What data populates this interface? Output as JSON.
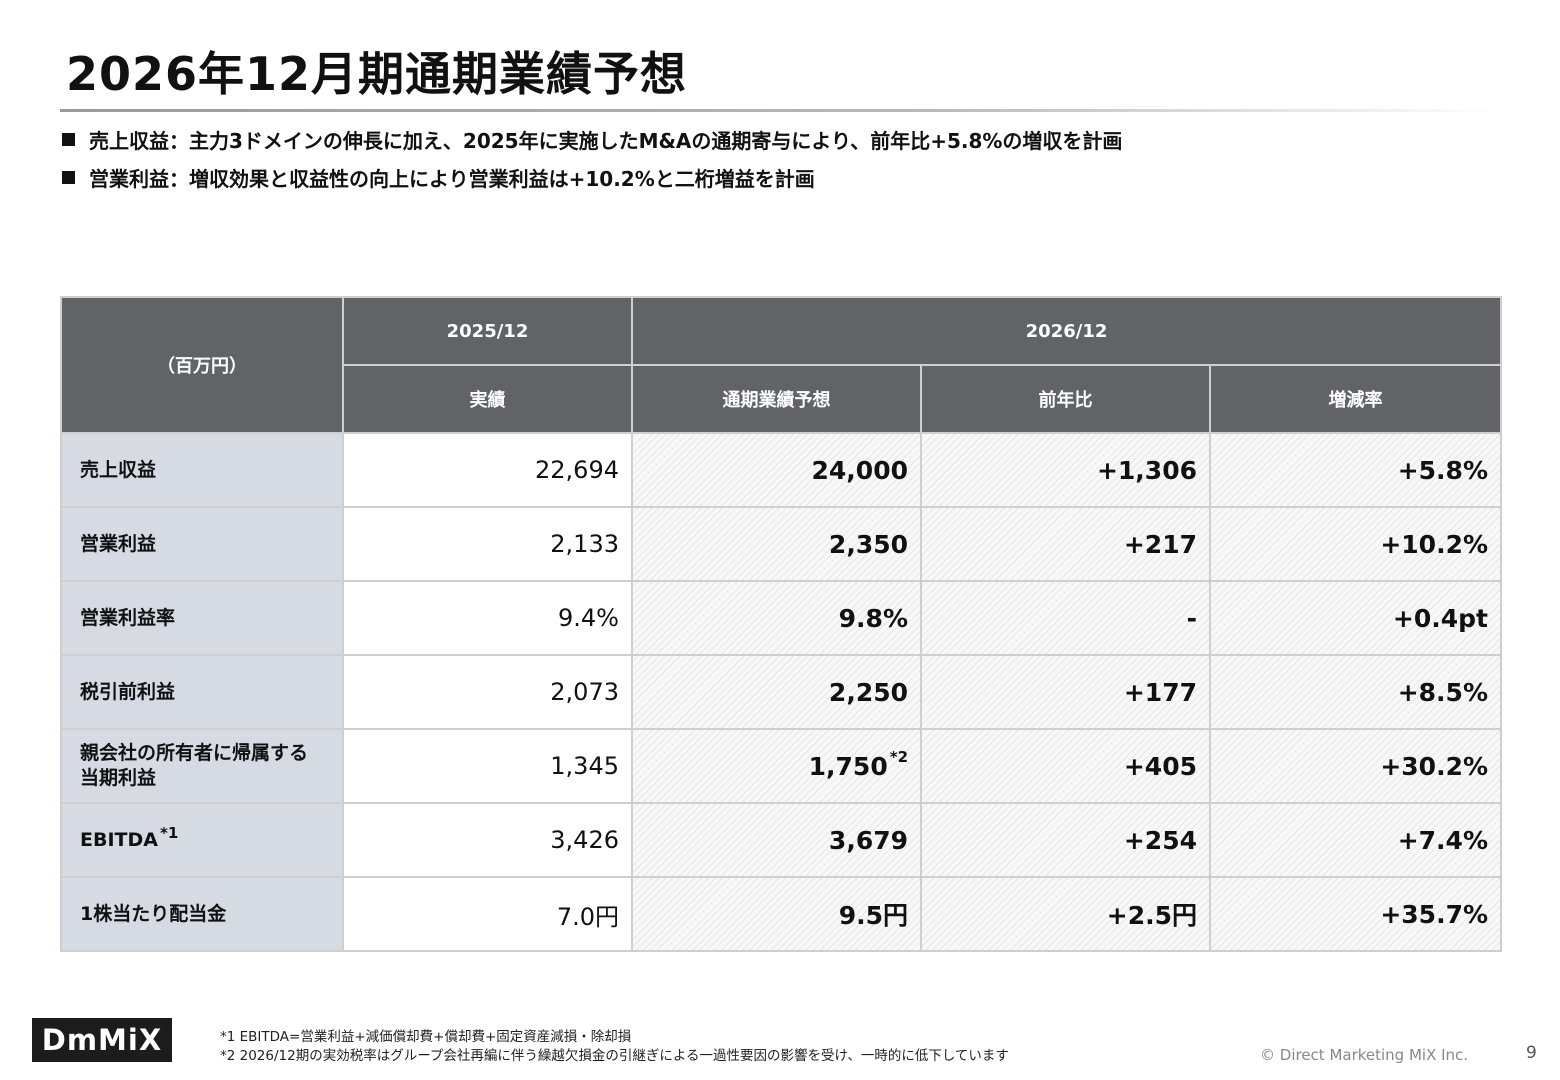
{
  "title": "2026年12月期通期業績予想",
  "bullets": [
    "売上収益：主力3ドメインの伸長に加え、2025年に実施したM&Aの通期寄与により、前年比+5.8%の増収を計画",
    "営業利益：増収効果と収益性の向上により営業利益は+10.2%と二桁増益を計画"
  ],
  "table": {
    "unit_label": "（百万円）",
    "group_2025": "2025/12",
    "group_2026": "2026/12",
    "col_actual": "実績",
    "col_forecast": "通期業績予想",
    "col_yoy": "前年比",
    "col_rate": "増減率",
    "rows": [
      {
        "label": "売上収益",
        "actual": "22,694",
        "forecast": "24,000",
        "yoy": "+1,306",
        "rate": "+5.8%"
      },
      {
        "label": "営業利益",
        "actual": "2,133",
        "forecast": "2,350",
        "yoy": "+217",
        "rate": "+10.2%"
      },
      {
        "label": "営業利益率",
        "actual": "9.4%",
        "forecast": "9.8%",
        "yoy": "-",
        "rate": "+0.4pt"
      },
      {
        "label": "税引前利益",
        "actual": "2,073",
        "forecast": "2,250",
        "yoy": "+177",
        "rate": "+8.5%"
      },
      {
        "label_line1": "親会社の所有者に帰属する",
        "label_line2": "当期利益",
        "actual": "1,345",
        "forecast": "1,750",
        "forecast_note": "*2",
        "yoy": "+405",
        "rate": "+30.2%"
      },
      {
        "label": "EBITDA",
        "label_note": "*1",
        "actual": "3,426",
        "forecast": "3,679",
        "yoy": "+254",
        "rate": "+7.4%"
      },
      {
        "label": "1株当たり配当金",
        "actual": "7.0円",
        "forecast": "9.5円",
        "yoy": "+2.5円",
        "rate": "+35.7%"
      }
    ]
  },
  "footnotes": [
    "*1  EBITDA=営業利益+減価償却費+償却費+固定資産減損・除却損",
    "*2  2026/12期の実効税率はグループ会社再編に伴う繰越欠損金の引継ぎによる一過性要因の影響を受け、一時的に低下しています"
  ],
  "logo_text": "DmMiX",
  "copyright": "© Direct Marketing MiX Inc.",
  "page_number": "9"
}
